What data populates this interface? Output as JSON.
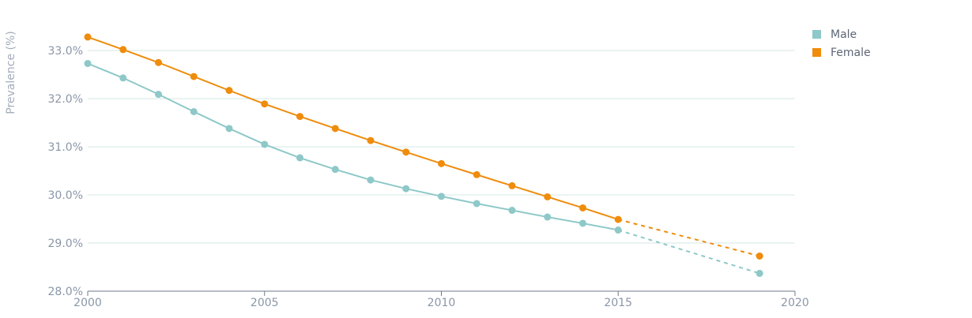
{
  "chart_data": {
    "type": "line",
    "ylabel": "Prevalence (%)",
    "xlim": [
      2000,
      2020
    ],
    "ylim": [
      28.0,
      33.0
    ],
    "x_ticks": [
      "2000",
      "2005",
      "2010",
      "2015",
      "2020"
    ],
    "y_ticks": [
      "28.0%",
      "29.0%",
      "30.0%",
      "31.0%",
      "32.0%",
      "33.0%"
    ],
    "grid": true,
    "legend_position": "top-right",
    "projection": {
      "from": 2015,
      "to": 2019,
      "style": "dashed"
    },
    "series": [
      {
        "name": "Male",
        "color": "#8ec8c8",
        "points": [
          [
            2000,
            32.73
          ],
          [
            2001,
            32.43
          ],
          [
            2002,
            32.09
          ],
          [
            2003,
            31.73
          ],
          [
            2004,
            31.38
          ],
          [
            2005,
            31.05
          ],
          [
            2006,
            30.77
          ],
          [
            2007,
            30.53
          ],
          [
            2008,
            30.31
          ],
          [
            2009,
            30.13
          ],
          [
            2010,
            29.97
          ],
          [
            2011,
            29.82
          ],
          [
            2012,
            29.68
          ],
          [
            2013,
            29.54
          ],
          [
            2014,
            29.41
          ],
          [
            2015,
            29.27
          ],
          [
            2019,
            28.37
          ]
        ]
      },
      {
        "name": "Female",
        "color": "#ef8c0c",
        "points": [
          [
            2000,
            33.28
          ],
          [
            2001,
            33.02
          ],
          [
            2002,
            32.75
          ],
          [
            2003,
            32.46
          ],
          [
            2004,
            32.17
          ],
          [
            2005,
            31.89
          ],
          [
            2006,
            31.63
          ],
          [
            2007,
            31.38
          ],
          [
            2008,
            31.13
          ],
          [
            2009,
            30.89
          ],
          [
            2010,
            30.65
          ],
          [
            2011,
            30.42
          ],
          [
            2012,
            30.19
          ],
          [
            2013,
            29.96
          ],
          [
            2014,
            29.73
          ],
          [
            2015,
            29.49
          ],
          [
            2019,
            28.73
          ]
        ]
      }
    ]
  }
}
